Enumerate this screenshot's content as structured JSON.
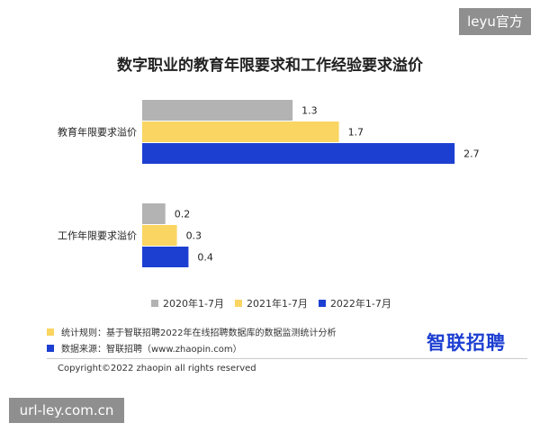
{
  "watermarks": {
    "top": "leyu官方",
    "bottom": "url-ley.com.cn"
  },
  "chart_data": {
    "type": "bar",
    "orientation": "horizontal",
    "title": "数字职业的教育年限要求和工作经验要求溢价",
    "categories": [
      "教育年限要求溢价",
      "工作年限要求溢价"
    ],
    "series": [
      {
        "name": "2020年1-7月",
        "values": [
          1.3,
          0.2
        ],
        "color": "#b3b3b3"
      },
      {
        "name": "2021年1-7月",
        "values": [
          1.7,
          0.3
        ],
        "color": "#fad561"
      },
      {
        "name": "2022年1-7月",
        "values": [
          2.7,
          0.4
        ],
        "color": "#1d3fd1"
      }
    ],
    "value_labels": [
      [
        "1.3",
        "0.2"
      ],
      [
        "1.7",
        "0.3"
      ],
      [
        "2.7",
        "0.4"
      ]
    ],
    "xlim": [
      0,
      2.8
    ],
    "grid": false,
    "legend_position": "bottom"
  },
  "notes": {
    "rule": {
      "text": "统计规则：基于智联招聘2022年在线招聘数据库的数据监测统计分析",
      "color": "#fad561"
    },
    "source": {
      "text": "数据来源：智联招聘（www.zhaopin.com）",
      "color": "#1d3fd1"
    }
  },
  "brand": {
    "logo_text": "智联招聘",
    "color": "#1d3fd1"
  },
  "copyright": "Copyright©2022 zhaopin all rights reserved"
}
